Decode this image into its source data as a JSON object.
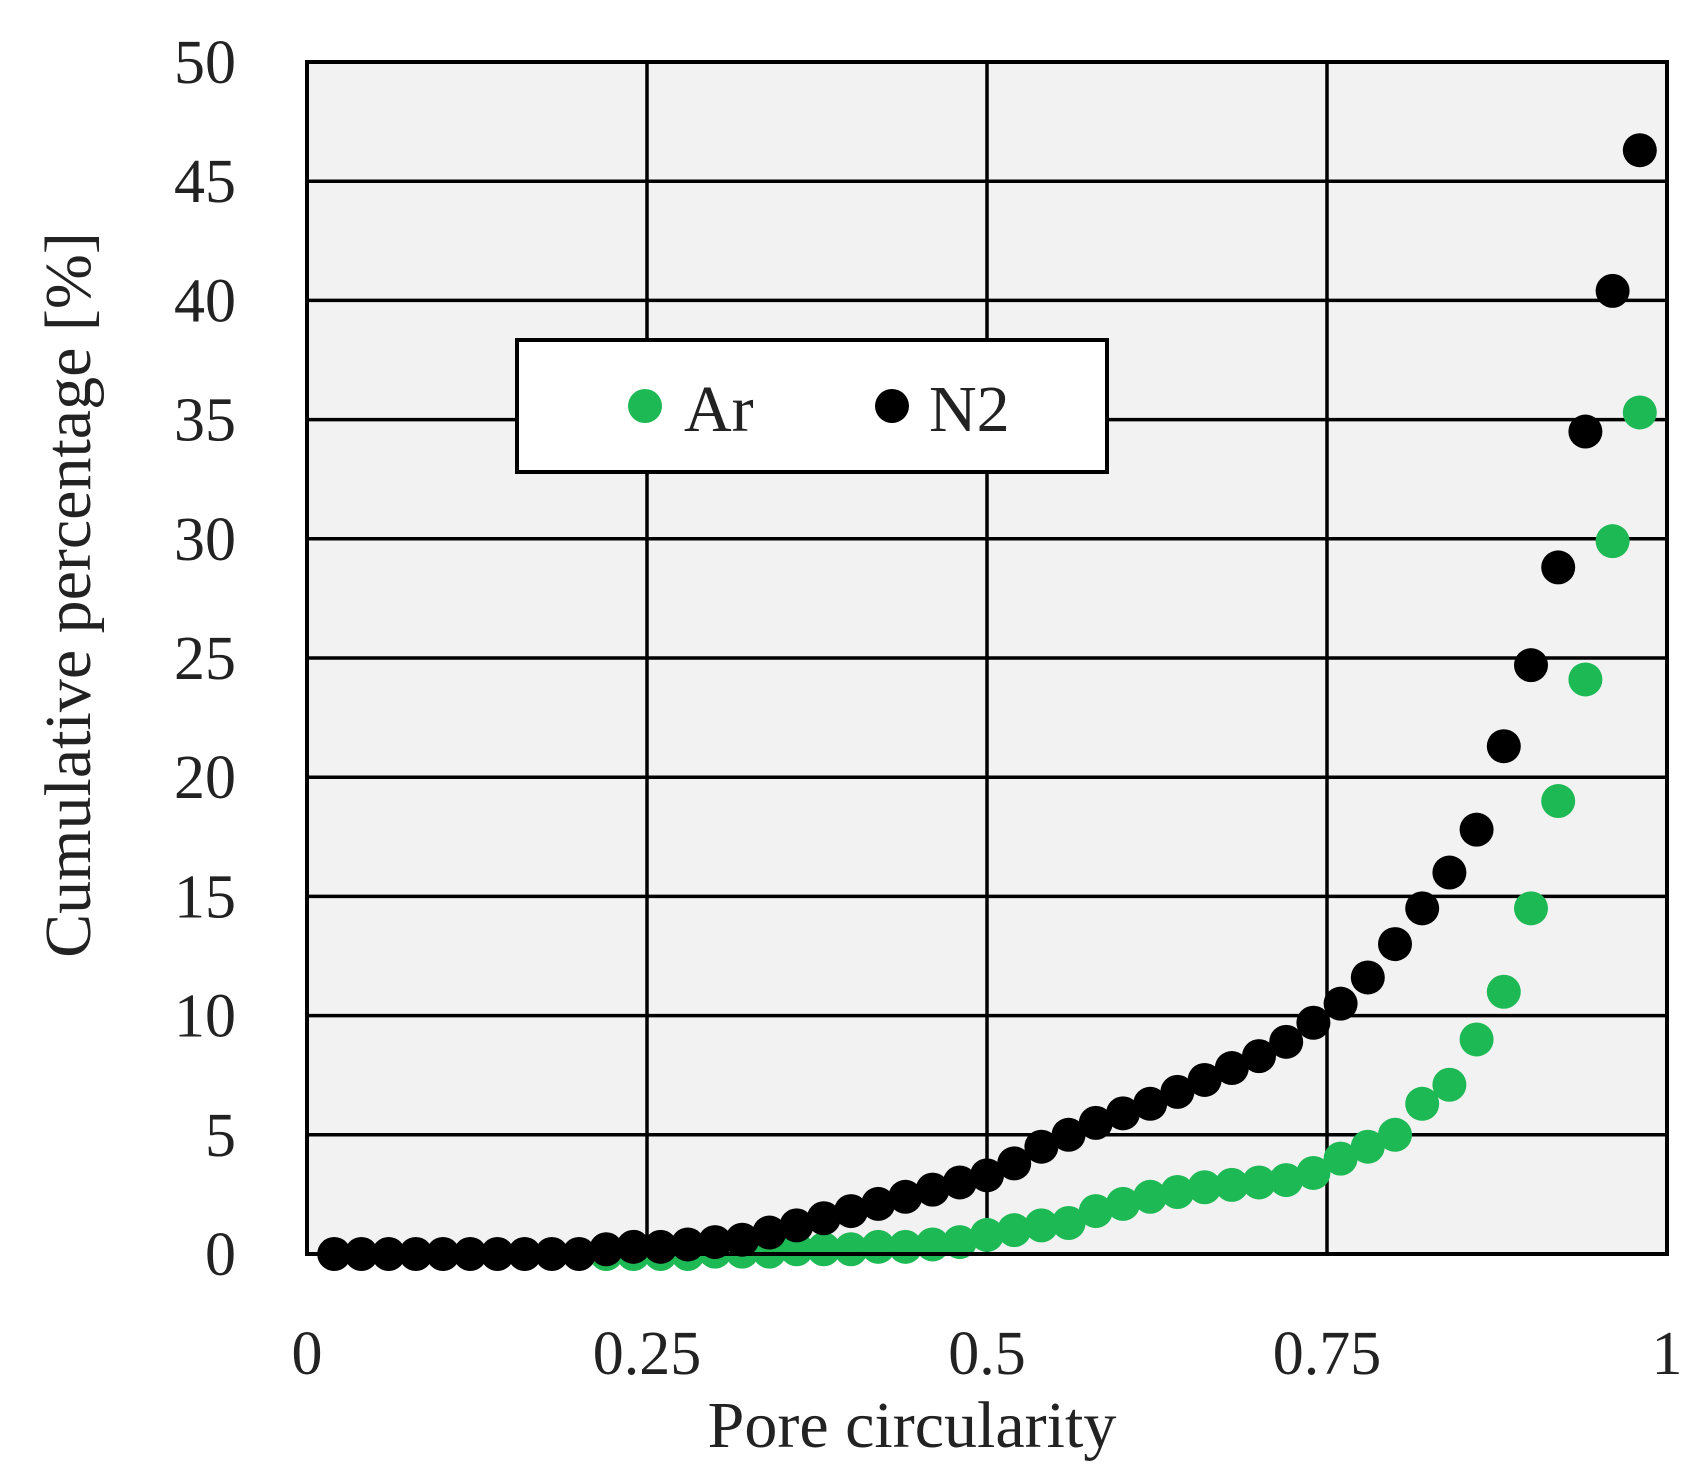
{
  "chart_data": {
    "type": "scatter",
    "title": "",
    "xlabel": "Pore circularity",
    "ylabel": "Cumulative percentage  [%]",
    "xlim": [
      0,
      1
    ],
    "ylim": [
      0,
      50
    ],
    "x_ticks": [
      "0",
      "0.25",
      "0.5",
      "0.75",
      "1"
    ],
    "y_ticks": [
      "0",
      "5",
      "10",
      "15",
      "20",
      "25",
      "30",
      "35",
      "40",
      "45",
      "50"
    ],
    "grid": true,
    "legend_position": "upper-left",
    "plot_background": "#f2f2f2",
    "series": [
      {
        "name": "Ar",
        "color": "#1db954",
        "points": [
          [
            0.22,
            0.0
          ],
          [
            0.24,
            0.0
          ],
          [
            0.26,
            0.0
          ],
          [
            0.28,
            0.0
          ],
          [
            0.3,
            0.1
          ],
          [
            0.32,
            0.1
          ],
          [
            0.34,
            0.1
          ],
          [
            0.36,
            0.2
          ],
          [
            0.38,
            0.2
          ],
          [
            0.4,
            0.2
          ],
          [
            0.42,
            0.3
          ],
          [
            0.44,
            0.3
          ],
          [
            0.46,
            0.4
          ],
          [
            0.48,
            0.5
          ],
          [
            0.5,
            0.8
          ],
          [
            0.52,
            1.0
          ],
          [
            0.54,
            1.2
          ],
          [
            0.56,
            1.3
          ],
          [
            0.58,
            1.8
          ],
          [
            0.6,
            2.1
          ],
          [
            0.62,
            2.4
          ],
          [
            0.64,
            2.6
          ],
          [
            0.66,
            2.8
          ],
          [
            0.68,
            2.9
          ],
          [
            0.7,
            3.0
          ],
          [
            0.72,
            3.1
          ],
          [
            0.74,
            3.4
          ],
          [
            0.76,
            4.0
          ],
          [
            0.78,
            4.5
          ],
          [
            0.8,
            5.0
          ],
          [
            0.82,
            6.3
          ],
          [
            0.84,
            7.1
          ],
          [
            0.86,
            9.0
          ],
          [
            0.88,
            11.0
          ],
          [
            0.9,
            14.5
          ],
          [
            0.92,
            19.0
          ],
          [
            0.94,
            24.1
          ],
          [
            0.96,
            29.9
          ],
          [
            0.98,
            35.3
          ]
        ]
      },
      {
        "name": "N2",
        "color": "#000000",
        "points": [
          [
            0.02,
            0.0
          ],
          [
            0.04,
            0.0
          ],
          [
            0.06,
            0.0
          ],
          [
            0.08,
            0.0
          ],
          [
            0.1,
            0.0
          ],
          [
            0.12,
            0.0
          ],
          [
            0.14,
            0.0
          ],
          [
            0.16,
            0.0
          ],
          [
            0.18,
            0.0
          ],
          [
            0.2,
            0.0
          ],
          [
            0.22,
            0.2
          ],
          [
            0.24,
            0.3
          ],
          [
            0.26,
            0.3
          ],
          [
            0.28,
            0.4
          ],
          [
            0.3,
            0.5
          ],
          [
            0.32,
            0.6
          ],
          [
            0.34,
            0.9
          ],
          [
            0.36,
            1.2
          ],
          [
            0.38,
            1.5
          ],
          [
            0.4,
            1.8
          ],
          [
            0.42,
            2.1
          ],
          [
            0.44,
            2.4
          ],
          [
            0.46,
            2.7
          ],
          [
            0.48,
            3.0
          ],
          [
            0.5,
            3.3
          ],
          [
            0.52,
            3.8
          ],
          [
            0.54,
            4.5
          ],
          [
            0.56,
            5.0
          ],
          [
            0.58,
            5.5
          ],
          [
            0.6,
            5.9
          ],
          [
            0.62,
            6.3
          ],
          [
            0.64,
            6.8
          ],
          [
            0.66,
            7.3
          ],
          [
            0.68,
            7.8
          ],
          [
            0.7,
            8.3
          ],
          [
            0.72,
            8.9
          ],
          [
            0.74,
            9.7
          ],
          [
            0.76,
            10.5
          ],
          [
            0.78,
            11.6
          ],
          [
            0.8,
            13.0
          ],
          [
            0.82,
            14.5
          ],
          [
            0.84,
            16.0
          ],
          [
            0.86,
            17.8
          ],
          [
            0.88,
            21.3
          ],
          [
            0.9,
            24.7
          ],
          [
            0.92,
            28.8
          ],
          [
            0.94,
            34.5
          ],
          [
            0.96,
            40.4
          ],
          [
            0.98,
            46.3
          ]
        ]
      }
    ]
  }
}
